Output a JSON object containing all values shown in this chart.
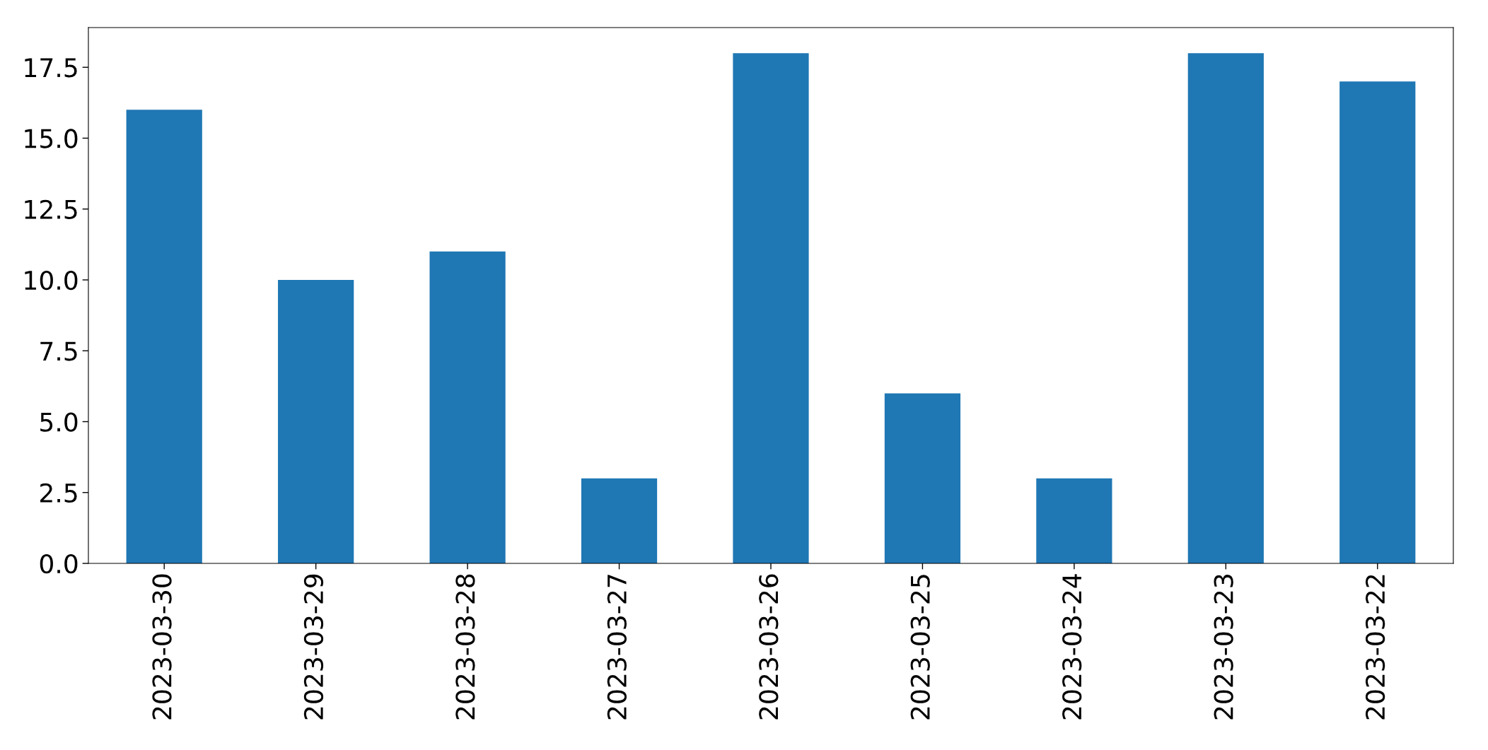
{
  "chart_data": {
    "type": "bar",
    "categories": [
      "2023-03-30",
      "2023-03-29",
      "2023-03-28",
      "2023-03-27",
      "2023-03-26",
      "2023-03-25",
      "2023-03-24",
      "2023-03-23",
      "2023-03-22"
    ],
    "values": [
      16,
      10,
      11,
      3,
      18,
      6,
      3,
      18,
      17
    ],
    "color": "#1f77b4",
    "ylim": [
      0,
      18.9
    ],
    "yticks": [
      {
        "value": 0,
        "label": "0.0"
      },
      {
        "value": 2.5,
        "label": "2.5"
      },
      {
        "value": 5,
        "label": "5.0"
      },
      {
        "value": 7.5,
        "label": "7.5"
      },
      {
        "value": 10,
        "label": "10.0"
      },
      {
        "value": 12.5,
        "label": "12.5"
      },
      {
        "value": 15,
        "label": "15.0"
      },
      {
        "value": 17.5,
        "label": "17.5"
      }
    ],
    "grid": false,
    "legend": false
  }
}
